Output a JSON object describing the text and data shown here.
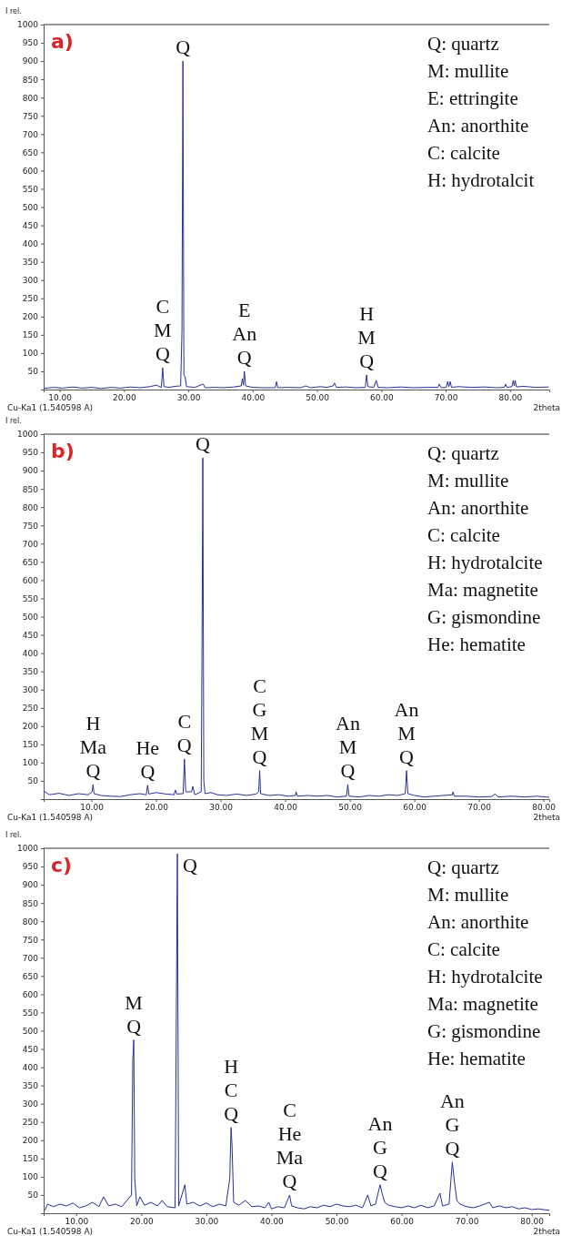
{
  "chart_data": [
    {
      "type": "line",
      "title": "a)",
      "xlabel": "2theta",
      "ylabel": "I rel.",
      "xlim": [
        7.5,
        86.1
      ],
      "ylim": [
        0,
        1000
      ],
      "xticks": [
        {
          "value": 10,
          "label": "10.00"
        },
        {
          "value": 20,
          "label": "20.00"
        },
        {
          "value": 30,
          "label": "30.00"
        },
        {
          "value": 40,
          "label": "40.00"
        },
        {
          "value": 50,
          "label": "50.00"
        },
        {
          "value": 60,
          "label": "60.00"
        },
        {
          "value": 70,
          "label": "70.00"
        },
        {
          "value": 80,
          "label": "80.00"
        }
      ],
      "yticks": [
        50,
        100,
        150,
        200,
        250,
        300,
        350,
        400,
        450,
        500,
        550,
        600,
        650,
        700,
        750,
        800,
        850,
        900,
        950,
        1000
      ],
      "annotations": [
        "Q:  quartz",
        "M: mullite",
        "E: ettringite",
        "An: anorthite",
        "C:  calcite",
        "H: hydrotalcit",
        "Cu-Ka1 (1.540598 A)",
        {
          "text": "C\nM\nQ",
          "x": 26.0,
          "y": 60
        },
        {
          "text": "Q",
          "x": 29.15,
          "y": 900
        },
        {
          "text": "E\nAn\nQ",
          "x": 38.7,
          "y": 50
        },
        {
          "text": "H\nM\nQ",
          "x": 57.7,
          "y": 40
        }
      ],
      "series": [
        {
          "color": "#2a2f96",
          "x": [
            7.5,
            9,
            10.5,
            12,
            13.5,
            15,
            16.5,
            18,
            19.5,
            21,
            22.5,
            24,
            25,
            25.8,
            26.0,
            26.2,
            27,
            28,
            28.8,
            29.0,
            29.15,
            29.3,
            29.5,
            29.7,
            31,
            32.3,
            32.6,
            34,
            35.5,
            37,
            38.2,
            38.4,
            38.55,
            38.7,
            38.9,
            40,
            41.5,
            43.5,
            43.7,
            43.9,
            45.5,
            47.5,
            48.2,
            49,
            50.5,
            51.5,
            52.5,
            52.7,
            53,
            54.5,
            56,
            57.5,
            57.7,
            57.9,
            58.8,
            59.2,
            59.5,
            61,
            63,
            65,
            67,
            68.8,
            69,
            69.3,
            70.1,
            70.3,
            70.5,
            70.7,
            70.9,
            72,
            74,
            76,
            78,
            79.1,
            79.3,
            79.5,
            80.3,
            80.5,
            80.65,
            80.8,
            81,
            82,
            84,
            86
          ],
          "values": [
            3,
            6,
            4,
            7,
            4,
            6,
            3,
            6,
            4,
            7,
            5,
            8,
            12,
            6,
            60,
            8,
            6,
            9,
            10,
            160,
            900,
            40,
            35,
            8,
            6,
            15,
            5,
            6,
            5,
            7,
            10,
            30,
            12,
            50,
            10,
            6,
            5,
            5,
            22,
            5,
            6,
            5,
            10,
            5,
            8,
            6,
            10,
            18,
            6,
            7,
            5,
            6,
            40,
            8,
            6,
            25,
            6,
            5,
            7,
            5,
            6,
            6,
            15,
            5,
            6,
            22,
            8,
            22,
            6,
            8,
            6,
            7,
            5,
            6,
            15,
            6,
            8,
            25,
            10,
            25,
            7,
            9,
            6,
            7
          ]
        }
      ]
    },
    {
      "type": "line",
      "title": "b)",
      "xlabel": "2theta",
      "ylabel": "I rel.",
      "xlim": [
        2.6,
        80.9
      ],
      "ylim": [
        0,
        1000
      ],
      "xticks": [
        {
          "value": 10,
          "label": "10.00"
        },
        {
          "value": 20,
          "label": "20.00"
        },
        {
          "value": 30,
          "label": "30.00"
        },
        {
          "value": 40,
          "label": "40.00"
        },
        {
          "value": 50,
          "label": "50.00"
        },
        {
          "value": 60,
          "label": "60.00"
        },
        {
          "value": 70,
          "label": "70.00"
        },
        {
          "value": 80,
          "label": "80.00"
        }
      ],
      "yticks": [
        50,
        100,
        150,
        200,
        250,
        300,
        350,
        400,
        450,
        500,
        550,
        600,
        650,
        700,
        750,
        800,
        850,
        900,
        950,
        1000
      ],
      "annotations": [
        "Q:  quartz",
        "M: mullite",
        "An: anorthite",
        "C:  calcite",
        "H: hydrotalcite",
        "Ma: magnetite",
        "G: gismondine",
        "He: hematite",
        "Cu-Ka1 (1.540598 A)",
        {
          "text": "H\nMa\nQ",
          "x": 10.25,
          "y": 40
        },
        {
          "text": "He\nQ",
          "x": 18.7,
          "y": 38
        },
        {
          "text": "C\nQ",
          "x": 24.4,
          "y": 110
        },
        {
          "text": "Q",
          "x": 27.25,
          "y": 935
        },
        {
          "text": "C\nG\nM\nQ",
          "x": 36.05,
          "y": 78
        },
        {
          "text": "An\nM\nQ",
          "x": 49.7,
          "y": 40
        },
        {
          "text": "An\nM\nQ",
          "x": 58.8,
          "y": 78
        }
      ],
      "series": [
        {
          "color": "#2a2f96",
          "x": [
            2.6,
            3.5,
            5,
            6.5,
            8,
            9.5,
            10.1,
            10.25,
            10.4,
            11.5,
            13,
            14.5,
            16,
            17.5,
            18.5,
            18.7,
            18.9,
            20,
            21.5,
            22.8,
            23.0,
            23.2,
            24.2,
            24.4,
            24.6,
            25.5,
            25.7,
            26,
            27.0,
            27.15,
            27.25,
            27.4,
            27.6,
            28.5,
            29.5,
            31,
            32.5,
            34,
            35.5,
            35.9,
            36.05,
            36.2,
            37.5,
            39,
            40.5,
            41.6,
            41.7,
            41.9,
            43.5,
            45,
            46.5,
            48,
            49.5,
            49.7,
            49.9,
            51.5,
            53,
            54.5,
            56,
            57.5,
            58.6,
            58.8,
            59,
            60,
            61.5,
            63,
            64.5,
            65.9,
            66,
            66.2,
            68,
            70,
            72,
            72.5,
            73,
            75,
            77,
            79,
            80.9
          ],
          "values": [
            22,
            12,
            16,
            10,
            15,
            12,
            20,
            40,
            15,
            10,
            8,
            7,
            12,
            15,
            12,
            38,
            14,
            18,
            14,
            12,
            25,
            14,
            15,
            110,
            20,
            20,
            35,
            12,
            20,
            500,
            935,
            50,
            15,
            18,
            12,
            10,
            14,
            10,
            14,
            20,
            78,
            15,
            10,
            12,
            8,
            10,
            20,
            8,
            10,
            8,
            10,
            6,
            8,
            40,
            8,
            6,
            10,
            8,
            12,
            10,
            15,
            78,
            15,
            10,
            6,
            8,
            10,
            12,
            20,
            8,
            8,
            6,
            7,
            14,
            6,
            8,
            6,
            8,
            5
          ]
        }
      ]
    },
    {
      "type": "line",
      "title": "c)",
      "xlabel": "2theta",
      "ylabel": "I rel.",
      "xlim": [
        5,
        82.7
      ],
      "ylim": [
        0,
        1000
      ],
      "xticks": [
        {
          "value": 10,
          "label": "10.00"
        },
        {
          "value": 20,
          "label": "20.00"
        },
        {
          "value": 30,
          "label": "30.00"
        },
        {
          "value": 40,
          "label": "40.00"
        },
        {
          "value": 50,
          "label": "50.00"
        },
        {
          "value": 60,
          "label": "60.00"
        },
        {
          "value": 70,
          "label": "70.00"
        },
        {
          "value": 80,
          "label": "80.00"
        }
      ],
      "yticks": [
        50,
        100,
        150,
        200,
        250,
        300,
        350,
        400,
        450,
        500,
        550,
        600,
        650,
        700,
        750,
        800,
        850,
        900,
        950,
        1000
      ],
      "annotations": [
        "Q:  quartz",
        "M: mullite",
        "An: anorthite",
        "C:  calcite",
        "H: hydrotalcite",
        "Ma: magnetite",
        "G: gismondine",
        "He: hematite",
        "Cu-Ka1 (1.540598 A)",
        {
          "text": "M\nQ",
          "x": 18.85,
          "y": 475
        },
        {
          "text": "Q",
          "x": 25.55,
          "y": 985
        },
        {
          "text": "H\nC\nQ",
          "x": 33.8,
          "y": 235
        },
        {
          "text": "C\nHe\nMa\nQ",
          "x": 42.8,
          "y": 50
        },
        {
          "text": "An\nG\nQ",
          "x": 56.7,
          "y": 78
        },
        {
          "text": "An\nG\nQ",
          "x": 67.8,
          "y": 140
        }
      ],
      "series": [
        {
          "color": "#2a2f96",
          "x": [
            5.2,
            5.6,
            6.5,
            7.5,
            8.5,
            9.5,
            10.5,
            11.5,
            12.5,
            13.5,
            14.2,
            15,
            16,
            17,
            17.8,
            18.5,
            18.7,
            18.85,
            19.0,
            19.3,
            19.8,
            20.5,
            21.5,
            22.5,
            23.2,
            24,
            25.2,
            25.55,
            25.75,
            26.7,
            27,
            28,
            29,
            30,
            31,
            32,
            33,
            33.6,
            33.8,
            33.95,
            34.2,
            35,
            36,
            37,
            38,
            39,
            39.6,
            40,
            41,
            42,
            42.8,
            43.1,
            44,
            45,
            46,
            47,
            48,
            49,
            50,
            51,
            52,
            53,
            54,
            54.8,
            55.3,
            56,
            56.7,
            57.0,
            57.4,
            58,
            59,
            60,
            61,
            62,
            63,
            64,
            65,
            65.9,
            66.3,
            67.3,
            67.8,
            68.1,
            68.5,
            69,
            70,
            71,
            72,
            73.5,
            74,
            75,
            76,
            77,
            78,
            79,
            80,
            81,
            82.7
          ],
          "values": [
            8,
            25,
            18,
            25,
            20,
            28,
            15,
            20,
            30,
            18,
            45,
            20,
            25,
            18,
            35,
            50,
            420,
            475,
            95,
            20,
            45,
            22,
            30,
            20,
            35,
            18,
            15,
            985,
            20,
            78,
            25,
            30,
            20,
            28,
            18,
            25,
            20,
            95,
            235,
            185,
            30,
            22,
            35,
            18,
            20,
            15,
            30,
            12,
            18,
            15,
            50,
            20,
            15,
            12,
            18,
            15,
            22,
            18,
            25,
            20,
            18,
            22,
            15,
            50,
            20,
            25,
            78,
            55,
            30,
            22,
            18,
            15,
            20,
            15,
            22,
            15,
            20,
            55,
            20,
            25,
            140,
            90,
            35,
            25,
            18,
            15,
            20,
            30,
            15,
            20,
            15,
            18,
            12,
            15,
            10,
            12,
            8
          ]
        }
      ]
    }
  ]
}
